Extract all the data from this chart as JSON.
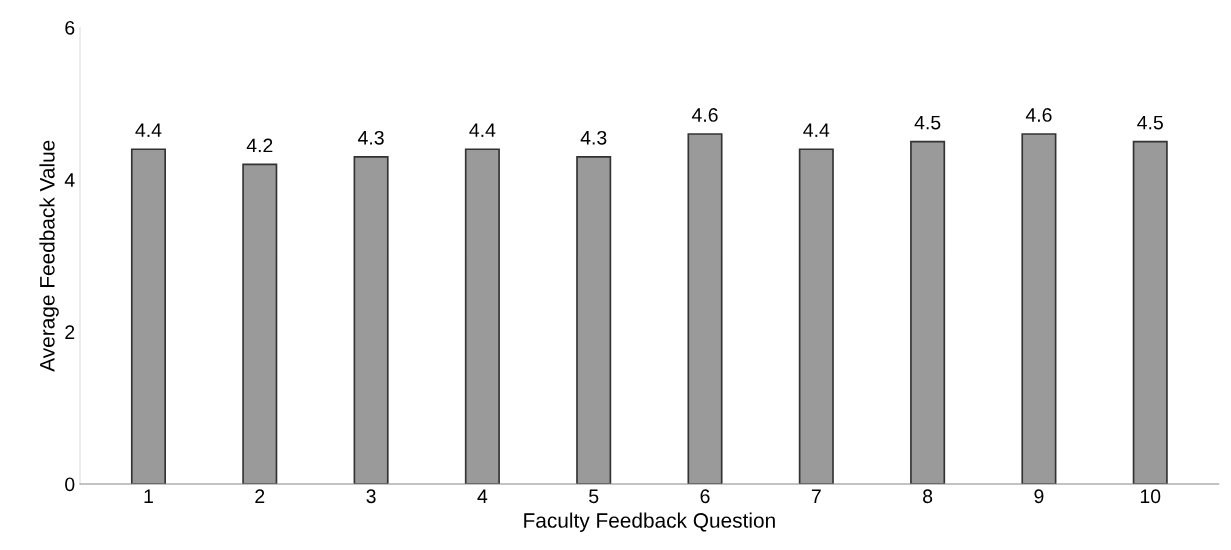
{
  "chart_data": {
    "type": "bar",
    "xlabel": "Faculty Feedback Question",
    "ylabel": "Average Feedback Value",
    "categories": [
      "1",
      "2",
      "3",
      "4",
      "5",
      "6",
      "7",
      "8",
      "9",
      "10"
    ],
    "values": [
      4.4,
      4.2,
      4.3,
      4.4,
      4.3,
      4.6,
      4.4,
      4.5,
      4.6,
      4.5
    ],
    "color": "#9a9a9a",
    "ylim": [
      0,
      6
    ],
    "yticks": [
      0,
      2,
      4,
      6
    ],
    "grid": false,
    "data_labels": true
  }
}
